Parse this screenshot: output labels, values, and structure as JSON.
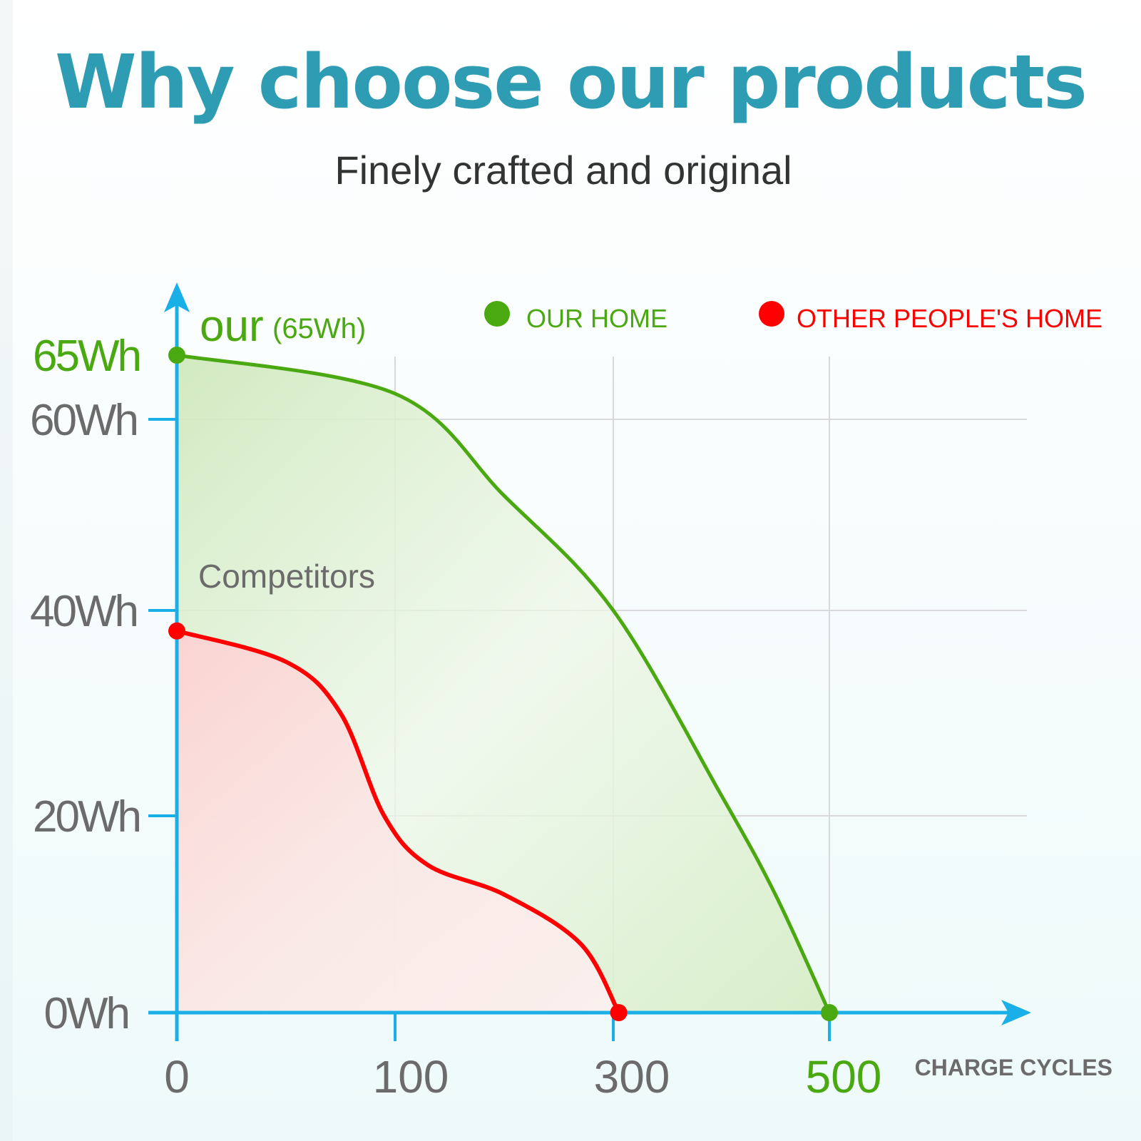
{
  "header": {
    "title": "Why choose our products",
    "subtitle": "Finely crafted and original"
  },
  "colors": {
    "title": "#2e9db3",
    "axis": "#1aafe6",
    "ours": "#4aa811",
    "competitor": "#ff0000",
    "tick_label": "#6b6b6b",
    "grid": "#d9d9d9"
  },
  "chart_data": {
    "type": "area",
    "xlabel": "CHARGE CYCLES",
    "ylabel": "",
    "x_ticks": [
      "0",
      "100",
      "300",
      "500"
    ],
    "y_ticks": [
      "0Wh",
      "20Wh",
      "40Wh",
      "60Wh",
      "65Wh"
    ],
    "highlighted_x_tick": "500",
    "highlighted_y_tick": "65Wh",
    "grid": true,
    "legend_position": "top-right",
    "legend": [
      {
        "label": "OUR HOME",
        "color": "#4aa811"
      },
      {
        "label": "OTHER PEOPLE'S HOME",
        "color": "#ff0000"
      }
    ],
    "annotations": [
      {
        "text": "our",
        "detail": "(65Wh)",
        "series": "ours"
      },
      {
        "text": "Competitors",
        "series": "competitors"
      }
    ],
    "series": [
      {
        "name": "OUR HOME",
        "key": "ours",
        "color": "#4aa811",
        "x": [
          0,
          100,
          200,
          300,
          400,
          450,
          500
        ],
        "y": [
          65,
          62,
          52,
          40,
          22,
          12,
          0
        ]
      },
      {
        "name": "OTHER PEOPLE'S HOME",
        "key": "competitors",
        "color": "#ff0000",
        "x": [
          0,
          50,
          75,
          95,
          130,
          200,
          270,
          305
        ],
        "y": [
          38,
          35,
          30,
          20,
          15,
          12,
          7,
          0
        ]
      }
    ]
  }
}
